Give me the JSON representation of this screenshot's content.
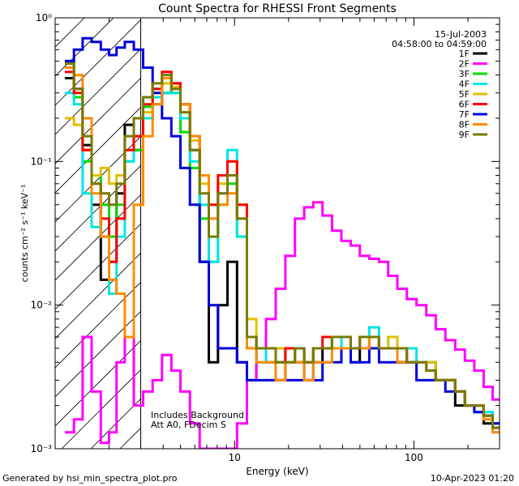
{
  "chart_data": {
    "type": "line",
    "title": "Count Spectra for RHESSI Front Segments",
    "xlabel": "Energy (keV)",
    "ylabel": "counts cm⁻² s⁻¹ keV⁻¹",
    "x_scale": "log",
    "y_scale": "log",
    "xlim": [
      1.0,
      300
    ],
    "ylim": [
      0.001,
      1.0
    ],
    "x_ticks": [
      {
        "value": 10,
        "label": "10"
      },
      {
        "value": 100,
        "label": "100"
      }
    ],
    "y_ticks": [
      {
        "value": 1,
        "label": "10⁰"
      },
      {
        "value": 0.1,
        "label": "10⁻¹"
      },
      {
        "value": 0.01,
        "label": "10⁻²"
      },
      {
        "value": 0.001,
        "label": "10⁻³"
      }
    ],
    "date": "15-Jul-2003",
    "time_range": "04:58:00 to 04:59:00",
    "legend_placement": "top-right",
    "attenuator_energy_keV": 3.0,
    "notes": [
      "Includes Background",
      "Att A0, FDecim S"
    ],
    "series": [
      {
        "name": "1F",
        "color": "#000000",
        "x": [
          1.2,
          1.35,
          1.5,
          1.7,
          1.9,
          2.1,
          2.3,
          2.6,
          2.9,
          3.3,
          3.7,
          4.2,
          4.7,
          5.3,
          6.0,
          6.8,
          7.6,
          8.6,
          9.7,
          11.0,
          12.5,
          14.0,
          16.0,
          18.0,
          20.5,
          23.0,
          26.0,
          29.0,
          33.0,
          37.0,
          42.0,
          47.0,
          53.0,
          60.0,
          68.0,
          76.0,
          86.0,
          97.0,
          110.0,
          125.0,
          140.0,
          160.0,
          180.0,
          205.0,
          230.0,
          260.0,
          290.0
        ],
        "values": [
          0.38,
          0.32,
          0.13,
          0.05,
          0.015,
          0.02,
          0.06,
          0.18,
          0.12,
          0.2,
          0.25,
          0.3,
          0.35,
          0.25,
          0.12,
          0.02,
          0.004,
          0.01,
          0.02,
          0.004,
          0.003,
          0.005,
          0.004,
          0.003,
          0.005,
          0.004,
          0.003,
          0.004,
          0.005,
          0.006,
          0.005,
          0.004,
          0.005,
          0.006,
          0.005,
          0.005,
          0.004,
          0.004,
          0.004,
          0.004,
          0.003,
          0.003,
          0.002,
          0.002,
          0.002,
          0.0015,
          0.0015
        ]
      },
      {
        "name": "2F",
        "color": "#ff00ff",
        "x": [
          1.2,
          1.35,
          1.5,
          1.7,
          1.9,
          2.1,
          2.3,
          2.6,
          2.9,
          3.3,
          3.7,
          4.2,
          4.7,
          5.3,
          6.0,
          6.8,
          7.6,
          8.6,
          9.7,
          11.0,
          12.5,
          14.0,
          16.0,
          18.0,
          20.5,
          23.0,
          26.0,
          29.0,
          33.0,
          37.0,
          42.0,
          47.0,
          53.0,
          60.0,
          68.0,
          76.0,
          86.0,
          97.0,
          110.0,
          125.0,
          140.0,
          160.0,
          180.0,
          205.0,
          230.0,
          260.0,
          290.0
        ],
        "values": [
          0.0013,
          0.0016,
          0.006,
          0.0025,
          0.0011,
          0.0013,
          0.004,
          0.006,
          0.002,
          0.0025,
          0.003,
          0.0045,
          0.0035,
          0.0025,
          0.0015,
          0.001,
          0.001,
          0.001,
          0.001,
          0.0015,
          0.003,
          0.005,
          0.008,
          0.013,
          0.022,
          0.04,
          0.048,
          0.052,
          0.042,
          0.033,
          0.028,
          0.026,
          0.022,
          0.021,
          0.02,
          0.016,
          0.013,
          0.011,
          0.01,
          0.0085,
          0.0068,
          0.0057,
          0.0049,
          0.0041,
          0.0035,
          0.0027,
          0.0022
        ]
      },
      {
        "name": "3F",
        "color": "#00dd00",
        "x": [
          1.2,
          1.35,
          1.5,
          1.7,
          1.9,
          2.1,
          2.3,
          2.6,
          2.9,
          3.3,
          3.7,
          4.2,
          4.7,
          5.3,
          6.0,
          6.8,
          7.6,
          8.6,
          9.7,
          11.0,
          12.5,
          14.0,
          16.0,
          18.0,
          20.5,
          23.0,
          26.0,
          29.0,
          33.0,
          37.0,
          42.0,
          47.0,
          53.0,
          60.0,
          68.0,
          76.0,
          86.0,
          97.0,
          110.0,
          125.0,
          140.0,
          160.0,
          180.0,
          205.0,
          230.0,
          260.0,
          290.0
        ],
        "values": [
          0.5,
          0.28,
          0.1,
          0.08,
          0.05,
          0.03,
          0.05,
          0.1,
          0.12,
          0.24,
          0.32,
          0.38,
          0.3,
          0.16,
          0.09,
          0.04,
          0.02,
          0.05,
          0.07,
          0.03,
          0.006,
          0.004,
          0.005,
          0.005,
          0.004,
          0.005,
          0.004,
          0.005,
          0.005,
          0.006,
          0.006,
          0.005,
          0.005,
          0.006,
          0.005,
          0.005,
          0.004,
          0.004,
          0.004,
          0.0035,
          0.003,
          0.003,
          0.0025,
          0.002,
          0.0018,
          0.0017,
          0.0014
        ]
      },
      {
        "name": "4F",
        "color": "#00e5e5",
        "x": [
          1.2,
          1.35,
          1.5,
          1.7,
          1.9,
          2.1,
          2.3,
          2.6,
          2.9,
          3.3,
          3.7,
          4.2,
          4.7,
          5.3,
          6.0,
          6.8,
          7.6,
          8.6,
          9.7,
          11.0,
          12.5,
          14.0,
          16.0,
          18.0,
          20.5,
          23.0,
          26.0,
          29.0,
          33.0,
          37.0,
          42.0,
          47.0,
          53.0,
          60.0,
          68.0,
          76.0,
          86.0,
          97.0,
          110.0,
          125.0,
          140.0,
          160.0,
          180.0,
          205.0,
          230.0,
          260.0,
          290.0
        ],
        "values": [
          0.3,
          0.25,
          0.06,
          0.035,
          0.03,
          0.012,
          0.03,
          0.1,
          0.15,
          0.2,
          0.28,
          0.3,
          0.3,
          0.2,
          0.1,
          0.05,
          0.02,
          0.06,
          0.12,
          0.03,
          0.006,
          0.004,
          0.005,
          0.004,
          0.004,
          0.005,
          0.003,
          0.005,
          0.005,
          0.006,
          0.005,
          0.005,
          0.006,
          0.007,
          0.005,
          0.006,
          0.005,
          0.005,
          0.004,
          0.004,
          0.003,
          0.003,
          0.0025,
          0.002,
          0.002,
          0.0018,
          0.0015
        ]
      },
      {
        "name": "5F",
        "color": "#e0c000",
        "x": [
          1.2,
          1.35,
          1.5,
          1.7,
          1.9,
          2.1,
          2.3,
          2.6,
          2.9,
          3.3,
          3.7,
          4.2,
          4.7,
          5.3,
          6.0,
          6.8,
          7.6,
          8.6,
          9.7,
          11.0,
          12.5,
          14.0,
          16.0,
          18.0,
          20.5,
          23.0,
          26.0,
          29.0,
          33.0,
          37.0,
          42.0,
          47.0,
          53.0,
          60.0,
          68.0,
          76.0,
          86.0,
          97.0,
          110.0,
          125.0,
          140.0,
          160.0,
          180.0,
          205.0,
          230.0,
          260.0,
          290.0
        ],
        "values": [
          0.2,
          0.18,
          0.12,
          0.08,
          0.09,
          0.07,
          0.08,
          0.12,
          0.15,
          0.22,
          0.3,
          0.35,
          0.33,
          0.22,
          0.14,
          0.07,
          0.05,
          0.07,
          0.1,
          0.05,
          0.008,
          0.005,
          0.005,
          0.005,
          0.004,
          0.005,
          0.004,
          0.005,
          0.005,
          0.006,
          0.006,
          0.005,
          0.006,
          0.006,
          0.005,
          0.006,
          0.005,
          0.004,
          0.004,
          0.004,
          0.003,
          0.003,
          0.0025,
          0.002,
          0.002,
          0.0017,
          0.0014
        ]
      },
      {
        "name": "6F",
        "color": "#ff0000",
        "x": [
          1.2,
          1.35,
          1.5,
          1.7,
          1.9,
          2.1,
          2.3,
          2.6,
          2.9,
          3.3,
          3.7,
          4.2,
          4.7,
          5.3,
          6.0,
          6.8,
          7.6,
          8.6,
          9.7,
          11.0,
          12.5,
          14.0,
          16.0,
          18.0,
          20.5,
          23.0,
          26.0,
          29.0,
          33.0,
          37.0,
          42.0,
          47.0,
          53.0,
          60.0,
          68.0,
          76.0,
          86.0,
          97.0,
          110.0,
          125.0,
          140.0,
          160.0,
          180.0,
          205.0,
          230.0,
          260.0,
          290.0
        ],
        "values": [
          0.42,
          0.3,
          0.12,
          0.07,
          0.04,
          0.02,
          0.04,
          0.12,
          0.15,
          0.25,
          0.32,
          0.42,
          0.35,
          0.25,
          0.15,
          0.08,
          0.05,
          0.08,
          0.1,
          0.05,
          0.006,
          0.005,
          0.005,
          0.004,
          0.005,
          0.005,
          0.004,
          0.005,
          0.006,
          0.006,
          0.006,
          0.005,
          0.006,
          0.006,
          0.005,
          0.005,
          0.005,
          0.004,
          0.004,
          0.0035,
          0.003,
          0.003,
          0.0025,
          0.002,
          0.002,
          0.0017,
          0.0014
        ]
      },
      {
        "name": "7F",
        "color": "#0000dd",
        "x": [
          1.2,
          1.35,
          1.5,
          1.7,
          1.9,
          2.1,
          2.3,
          2.6,
          2.9,
          3.3,
          3.7,
          4.2,
          4.7,
          5.3,
          6.0,
          6.8,
          7.6,
          8.6,
          9.7,
          11.0,
          12.5,
          14.0,
          16.0,
          18.0,
          20.5,
          23.0,
          26.0,
          29.0,
          33.0,
          37.0,
          42.0,
          47.0,
          53.0,
          60.0,
          68.0,
          76.0,
          86.0,
          97.0,
          110.0,
          125.0,
          140.0,
          160.0,
          180.0,
          205.0,
          230.0,
          260.0,
          290.0
        ],
        "values": [
          0.5,
          0.6,
          0.72,
          0.68,
          0.6,
          0.55,
          0.62,
          0.68,
          0.6,
          0.45,
          0.3,
          0.2,
          0.15,
          0.09,
          0.05,
          0.02,
          0.01,
          0.005,
          0.005,
          0.004,
          0.003,
          0.003,
          0.003,
          0.003,
          0.003,
          0.003,
          0.003,
          0.003,
          0.004,
          0.004,
          0.005,
          0.004,
          0.004,
          0.005,
          0.004,
          0.004,
          0.004,
          0.004,
          0.003,
          0.003,
          0.003,
          0.0025,
          0.0025,
          0.002,
          0.0018,
          0.0017,
          0.0015
        ]
      },
      {
        "name": "8F",
        "color": "#ff8c00",
        "x": [
          1.2,
          1.35,
          1.5,
          1.7,
          1.9,
          2.1,
          2.3,
          2.6,
          2.9,
          3.3,
          3.7,
          4.2,
          4.7,
          5.3,
          6.0,
          6.8,
          7.6,
          8.6,
          9.7,
          11.0,
          12.5,
          14.0,
          16.0,
          18.0,
          20.5,
          23.0,
          26.0,
          29.0,
          33.0,
          37.0,
          42.0,
          47.0,
          53.0,
          60.0,
          68.0,
          76.0,
          86.0,
          97.0,
          110.0,
          125.0,
          140.0,
          160.0,
          180.0,
          205.0,
          230.0,
          260.0,
          290.0
        ],
        "values": [
          0.45,
          0.4,
          0.2,
          0.06,
          0.03,
          0.015,
          0.012,
          0.006,
          0.05,
          0.15,
          0.25,
          0.38,
          0.32,
          0.25,
          0.15,
          0.08,
          0.04,
          0.05,
          0.06,
          0.04,
          0.005,
          0.004,
          0.004,
          0.003,
          0.004,
          0.004,
          0.003,
          0.004,
          0.004,
          0.005,
          0.005,
          0.005,
          0.005,
          0.006,
          0.005,
          0.005,
          0.004,
          0.004,
          0.004,
          0.0035,
          0.003,
          0.003,
          0.0025,
          0.002,
          0.002,
          0.0016,
          0.0013
        ]
      },
      {
        "name": "9F",
        "color": "#7a7a00",
        "x": [
          1.2,
          1.35,
          1.5,
          1.7,
          1.9,
          2.1,
          2.3,
          2.6,
          2.9,
          3.3,
          3.7,
          4.2,
          4.7,
          5.3,
          6.0,
          6.8,
          7.6,
          8.6,
          9.7,
          11.0,
          12.5,
          14.0,
          16.0,
          18.0,
          20.5,
          23.0,
          26.0,
          29.0,
          33.0,
          37.0,
          42.0,
          47.0,
          53.0,
          60.0,
          68.0,
          76.0,
          86.0,
          97.0,
          110.0,
          125.0,
          140.0,
          160.0,
          180.0,
          205.0,
          230.0,
          260.0,
          290.0
        ],
        "values": [
          0.48,
          0.32,
          0.15,
          0.07,
          0.06,
          0.05,
          0.07,
          0.15,
          0.2,
          0.28,
          0.35,
          0.4,
          0.32,
          0.22,
          0.12,
          0.06,
          0.03,
          0.06,
          0.08,
          0.04,
          0.006,
          0.005,
          0.005,
          0.004,
          0.004,
          0.005,
          0.004,
          0.005,
          0.005,
          0.006,
          0.006,
          0.005,
          0.006,
          0.006,
          0.005,
          0.005,
          0.005,
          0.004,
          0.004,
          0.0035,
          0.003,
          0.003,
          0.0025,
          0.002,
          0.002,
          0.0017,
          0.0014
        ]
      }
    ]
  },
  "footer": {
    "left": "Generated by hsi_min_spectra_plot.pro",
    "right": "10-Apr-2023 01:20"
  }
}
